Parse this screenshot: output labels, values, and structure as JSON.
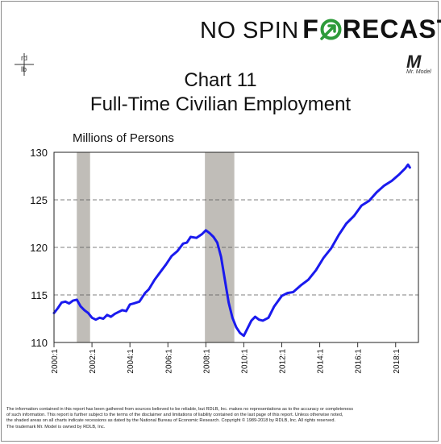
{
  "brand": {
    "prefix": "NO SPIN",
    "suffix": "FRECAST",
    "colors": {
      "arrow_green": "#2e9b3a"
    }
  },
  "rdlb_logo": {
    "top": "rd",
    "bottom": "lb"
  },
  "mr_model_logo": {
    "letter": "M",
    "tagline": "Mr. Model"
  },
  "chart_title_line1": "Chart 11",
  "chart_title_line2": "Full-Time Civilian Employment",
  "y_unit_label": "Millions of Persons",
  "disclaimer": {
    "line1": "The information contained in this report has been gathered from sources believed to be reliable, but RDLB, Inc. makes no representations as to the accuracy or completeness",
    "line2": "of such information. This report is further subject to the terms of the disclaimer and limitations of liability contained on the last page of this report. Unless otherwise noted,",
    "line3": "the shaded areas on all charts indicate recessions as dated by the National Bureau of Economic Research. Copyright © 1989-2018 by RDLB, Inc. All rights reserved.",
    "line4": "The trademark Mr. Model is owned by RDLB, Inc."
  },
  "chart_data": {
    "type": "line",
    "title": "Full-Time Civilian Employment",
    "ylabel": "Millions of Persons",
    "xlim": [
      2000.0,
      2019.2
    ],
    "ylim": [
      110,
      130
    ],
    "yticks": [
      110,
      115,
      120,
      125,
      130
    ],
    "xticks": [
      2000,
      2002,
      2004,
      2006,
      2008,
      2010,
      2012,
      2014,
      2016,
      2018
    ],
    "xtick_labels": [
      "2000:1",
      "2002:1",
      "2004:1",
      "2006:1",
      "2008:1",
      "2010:1",
      "2012:1",
      "2014:1",
      "2016:1",
      "2018:1"
    ],
    "grid": true,
    "recessions": [
      [
        2001.2,
        2001.9
      ],
      [
        2007.95,
        2009.5
      ]
    ],
    "colors": {
      "line": "#1a1aee",
      "recession": "#c0bdb8",
      "grid": "#555555"
    },
    "series": [
      {
        "x": [
          2000.0,
          2000.2,
          2000.4,
          2000.6,
          2000.8,
          2001.0,
          2001.2,
          2001.4,
          2001.6,
          2001.8,
          2002.0,
          2002.2,
          2002.4,
          2002.6,
          2002.8,
          2003.0,
          2003.2,
          2003.4,
          2003.6,
          2003.8,
          2004.0,
          2004.2,
          2004.5,
          2004.8,
          2005.0,
          2005.3,
          2005.6,
          2005.9,
          2006.2,
          2006.5,
          2006.8,
          2007.0,
          2007.2,
          2007.5,
          2007.8,
          2008.0,
          2008.2,
          2008.4,
          2008.6,
          2008.8,
          2009.0,
          2009.2,
          2009.4,
          2009.6,
          2009.8,
          2010.0,
          2010.2,
          2010.4,
          2010.6,
          2010.8,
          2011.0,
          2011.3,
          2011.6,
          2012.0,
          2012.3,
          2012.6,
          2013.0,
          2013.4,
          2013.8,
          2014.2,
          2014.6,
          2015.0,
          2015.4,
          2015.8,
          2016.2,
          2016.6,
          2017.0,
          2017.4,
          2017.8,
          2018.2,
          2018.5,
          2018.65,
          2018.75
        ],
        "values": [
          113.1,
          113.6,
          114.2,
          114.3,
          114.1,
          114.4,
          114.5,
          113.8,
          113.4,
          113.1,
          112.6,
          112.4,
          112.6,
          112.5,
          112.9,
          112.7,
          113.0,
          113.2,
          113.4,
          113.3,
          114.0,
          114.1,
          114.3,
          115.2,
          115.6,
          116.6,
          117.4,
          118.2,
          119.1,
          119.6,
          120.4,
          120.5,
          121.1,
          121.0,
          121.4,
          121.8,
          121.5,
          121.1,
          120.5,
          119.0,
          116.6,
          114.2,
          112.6,
          111.6,
          111.0,
          110.7,
          111.5,
          112.3,
          112.7,
          112.4,
          112.3,
          112.6,
          113.8,
          114.9,
          115.2,
          115.3,
          116.0,
          116.6,
          117.6,
          118.9,
          119.9,
          121.3,
          122.5,
          123.3,
          124.4,
          124.9,
          125.8,
          126.5,
          127.0,
          127.7,
          128.3,
          128.7,
          128.4
        ]
      }
    ]
  }
}
